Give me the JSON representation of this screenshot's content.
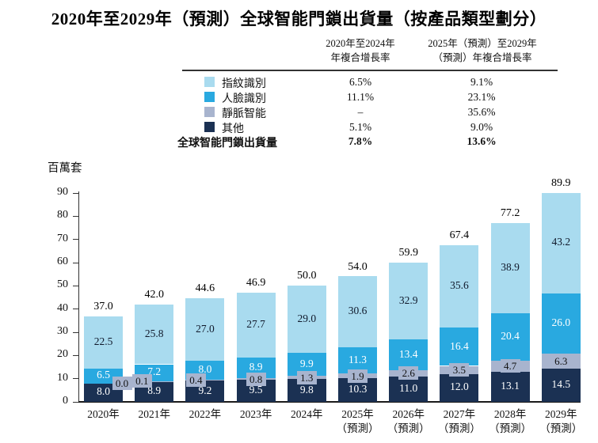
{
  "title": "2020年至2029年（預測）全球智能門鎖出貨量（按產品類型劃分）",
  "table": {
    "col1_header": [
      "2020年至2024年",
      "年複合增長率"
    ],
    "col2_header": [
      "2025年（預測）至2029年",
      "（預測）年複合增長率"
    ],
    "rows": [
      {
        "label": "指紋識別",
        "swatch": "#A9DBEF",
        "cagr_2020_2024": "6.5%",
        "cagr_2025_2029": "9.1%"
      },
      {
        "label": "人臉識別",
        "swatch": "#29A9E0",
        "cagr_2020_2024": "11.1%",
        "cagr_2025_2029": "23.1%"
      },
      {
        "label": "靜脈智能",
        "swatch": "#A8B4CE",
        "cagr_2020_2024": "–",
        "cagr_2025_2029": "35.6%"
      },
      {
        "label": "其他",
        "swatch": "#1B3153",
        "cagr_2020_2024": "5.1%",
        "cagr_2025_2029": "9.0%"
      }
    ],
    "total_row": {
      "label": "全球智能門鎖出貨量",
      "cagr_2020_2024": "7.8%",
      "cagr_2025_2029": "13.6%"
    }
  },
  "chart_data": {
    "type": "bar",
    "stacked": true,
    "unit_label": "百萬套",
    "ylabel": "百萬套",
    "xlabel": "",
    "ylim": [
      0,
      90
    ],
    "ytick_step": 10,
    "grid": false,
    "legend_position": "table-above",
    "categories": [
      "2020年",
      "2021年",
      "2022年",
      "2023年",
      "2024年",
      "2025年",
      "2026年",
      "2027年",
      "2028年",
      "2029年"
    ],
    "category_sublabels": [
      "",
      "",
      "",
      "",
      "",
      "（預測）",
      "（預測）",
      "（預測）",
      "（預測）",
      "（預測）"
    ],
    "series": [
      {
        "name": "指紋識別",
        "color": "#A9DBEF",
        "label_color": "#10192B",
        "values": [
          22.5,
          25.8,
          27.0,
          27.7,
          29.0,
          30.6,
          32.9,
          35.6,
          38.9,
          43.2
        ]
      },
      {
        "name": "人臉識別",
        "color": "#29A9E0",
        "label_color": "#FFFFFF",
        "values": [
          6.5,
          7.2,
          8.0,
          8.9,
          9.9,
          11.3,
          13.4,
          16.4,
          20.4,
          26.0
        ]
      },
      {
        "name": "靜脈智能",
        "color": "#A8B4CE",
        "label_color": "#10192B",
        "values": [
          0.0,
          0.1,
          0.4,
          0.8,
          1.3,
          1.9,
          2.6,
          3.5,
          4.7,
          6.3
        ]
      },
      {
        "name": "其他",
        "color": "#1B3153",
        "label_color": "#FFFFFF",
        "values": [
          8.0,
          8.9,
          9.2,
          9.5,
          9.8,
          10.3,
          11.0,
          12.0,
          13.1,
          14.5
        ]
      }
    ],
    "totals": [
      37.0,
      42.0,
      44.6,
      46.9,
      50.0,
      54.0,
      59.9,
      67.4,
      77.2,
      89.9
    ]
  }
}
